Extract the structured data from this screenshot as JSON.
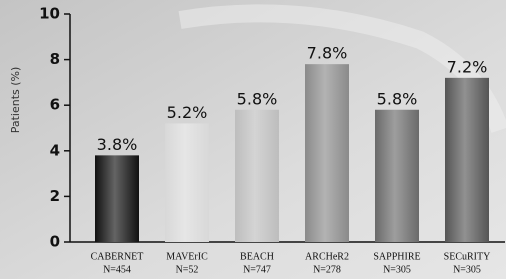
{
  "chart_data": {
    "type": "bar",
    "y_label": "Patients (%)",
    "categories": [
      "CABERNET",
      "MAVErIC",
      "BEACH",
      "ARCHeR2",
      "SAPPHIRE",
      "SECuRITY"
    ],
    "sample_sizes": [
      "N=454",
      "N=52",
      "N=747",
      "N=278",
      "N=305",
      "N=305"
    ],
    "values": [
      3.8,
      5.2,
      5.8,
      7.8,
      5.8,
      7.2
    ],
    "value_labels": [
      "3.8%",
      "5.2%",
      "5.8%",
      "7.8%",
      "5.8%",
      "7.2%"
    ],
    "colors": [
      "#111111",
      "#d8d8d8",
      "#bdbdbd",
      "#8a8a8a",
      "#6a6a6a",
      "#555555"
    ],
    "ylim": [
      0,
      10
    ],
    "yticks": [
      0,
      2,
      4,
      6,
      8,
      10
    ]
  }
}
